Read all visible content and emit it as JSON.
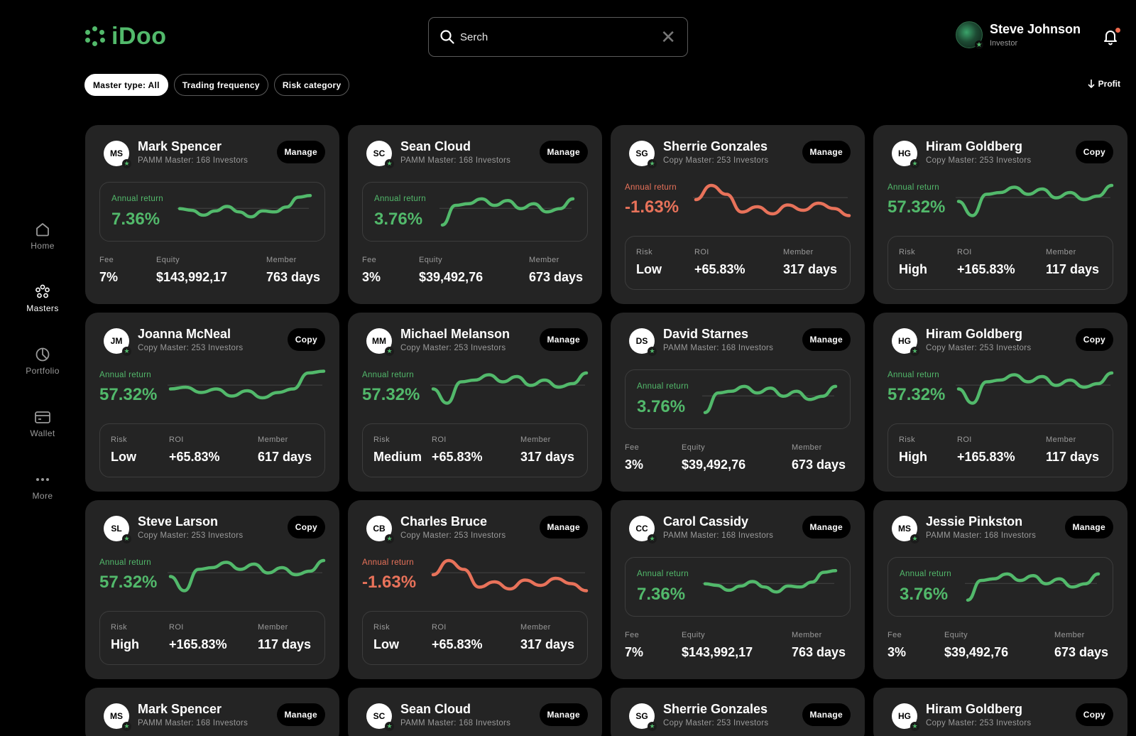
{
  "app": {
    "name": "iDoo",
    "brand_color": "#52b96b",
    "negative_color": "#e8725a"
  },
  "search": {
    "placeholder": "Serch",
    "search_icon": "search-icon",
    "clear_icon": "close-icon"
  },
  "user": {
    "name": "Steve Johnson",
    "role": "Investor",
    "notification_icon": "bell-icon"
  },
  "filters": [
    {
      "label": "Master type: All",
      "active": true
    },
    {
      "label": "Trading frequency",
      "active": false
    },
    {
      "label": "Risk category",
      "active": false
    }
  ],
  "sort": {
    "label": "Profit",
    "icon": "arrow-down-icon"
  },
  "nav": [
    {
      "label": "Home",
      "icon": "home-icon",
      "active": false
    },
    {
      "label": "Masters",
      "icon": "masters-icon",
      "active": true
    },
    {
      "label": "Portfolio",
      "icon": "pie-chart-icon",
      "active": false
    },
    {
      "label": "Wallet",
      "icon": "wallet-icon",
      "active": false
    },
    {
      "label": "More",
      "icon": "more-icon",
      "active": false
    }
  ],
  "labels": {
    "annual_return": "Annual return",
    "fee": "Fee",
    "equity": "Equity",
    "member": "Member",
    "risk": "Risk",
    "roi": "ROI"
  },
  "cards": [
    {
      "initials": "MS",
      "name": "Mark Spencer",
      "subtitle": "PAMM Master: 168 Investors",
      "action": "Manage",
      "layout": "pamm",
      "annual_return": "7.36%",
      "trend": "up",
      "fee": "7%",
      "equity": "$143,992,17",
      "member": "763 days",
      "sparkline": [
        0.45,
        0.5,
        0.65,
        0.52,
        0.38,
        0.55,
        0.7,
        0.52,
        0.55,
        0.4,
        0.1,
        0.05
      ]
    },
    {
      "initials": "SC",
      "name": "Sean Cloud",
      "subtitle": "PAMM Master: 168 Investors",
      "action": "Manage",
      "layout": "pamm",
      "annual_return": "3.76%",
      "trend": "up",
      "fee": "3%",
      "equity": "$39,492,76",
      "member": "673 days",
      "sparkline": [
        0.95,
        0.35,
        0.3,
        0.15,
        0.35,
        0.2,
        0.45,
        0.3,
        0.55,
        0.45,
        0.15
      ]
    },
    {
      "initials": "SG",
      "name": "Sherrie Gonzales",
      "subtitle": "Copy Master: 253 Investors",
      "action": "Manage",
      "layout": "copy",
      "annual_return": "-1.63%",
      "trend": "down",
      "risk": "Low",
      "roi": "+65.83%",
      "member": "317 days",
      "sparkline": [
        0.5,
        0.1,
        0.35,
        0.85,
        0.7,
        0.9,
        0.65,
        0.8,
        0.6,
        0.75,
        0.95
      ]
    },
    {
      "initials": "HG",
      "name": "Hiram Goldberg",
      "subtitle": "Copy Master: 253 Investors",
      "action": "Copy",
      "layout": "copy",
      "annual_return": "57.32%",
      "trend": "up",
      "risk": "High",
      "roi": "+165.83%",
      "member": "117 days",
      "sparkline": [
        0.55,
        0.95,
        0.35,
        0.3,
        0.15,
        0.35,
        0.2,
        0.45,
        0.3,
        0.5,
        0.4,
        0.1
      ]
    },
    {
      "initials": "JM",
      "name": "Joanna McNeal",
      "subtitle": "Copy Master: 253 Investors",
      "action": "Copy",
      "layout": "copy",
      "annual_return": "57.32%",
      "trend": "up",
      "risk": "Low",
      "roi": "+65.83%",
      "member": "617 days",
      "sparkline": [
        0.55,
        0.5,
        0.65,
        0.55,
        0.75,
        0.6,
        0.8,
        0.65,
        0.55,
        0.1,
        0.05
      ]
    },
    {
      "initials": "MM",
      "name": "Michael Melanson",
      "subtitle": "Copy Master: 253 Investors",
      "action": "Manage",
      "layout": "copy",
      "annual_return": "57.32%",
      "trend": "up",
      "risk": "Medium",
      "roi": "+65.83%",
      "member": "317 days",
      "sparkline": [
        0.55,
        0.95,
        0.35,
        0.3,
        0.15,
        0.35,
        0.2,
        0.45,
        0.3,
        0.5,
        0.4,
        0.1
      ]
    },
    {
      "initials": "DS",
      "name": "David Starnes",
      "subtitle": "PAMM Master: 168 Investors",
      "action": "Manage",
      "layout": "pamm",
      "annual_return": "3.76%",
      "trend": "up",
      "fee": "3%",
      "equity": "$39,492,76",
      "member": "673 days",
      "sparkline": [
        0.95,
        0.35,
        0.3,
        0.15,
        0.35,
        0.2,
        0.45,
        0.3,
        0.55,
        0.45,
        0.15
      ]
    },
    {
      "initials": "HG",
      "name": "Hiram Goldberg",
      "subtitle": "Copy Master: 253 Investors",
      "action": "Copy",
      "layout": "copy",
      "annual_return": "57.32%",
      "trend": "up",
      "risk": "High",
      "roi": "+165.83%",
      "member": "117 days",
      "sparkline": [
        0.55,
        0.95,
        0.35,
        0.3,
        0.15,
        0.35,
        0.2,
        0.45,
        0.3,
        0.5,
        0.4,
        0.1
      ]
    },
    {
      "initials": "SL",
      "name": "Steve Larson",
      "subtitle": "Copy Master: 253 Investors",
      "action": "Copy",
      "layout": "copy",
      "annual_return": "57.32%",
      "trend": "up",
      "risk": "High",
      "roi": "+165.83%",
      "member": "117 days",
      "sparkline": [
        0.55,
        0.95,
        0.35,
        0.3,
        0.15,
        0.35,
        0.2,
        0.45,
        0.3,
        0.5,
        0.4,
        0.1
      ]
    },
    {
      "initials": "CB",
      "name": "Charles Bruce",
      "subtitle": "Copy Master: 253 Investors",
      "action": "Manage",
      "layout": "copy",
      "annual_return": "-1.63%",
      "trend": "down",
      "risk": "Low",
      "roi": "+65.83%",
      "member": "317 days",
      "sparkline": [
        0.5,
        0.1,
        0.35,
        0.85,
        0.7,
        0.9,
        0.65,
        0.8,
        0.6,
        0.75,
        0.95
      ]
    },
    {
      "initials": "CC",
      "name": "Carol Cassidy",
      "subtitle": "PAMM Master: 168 Investors",
      "action": "Manage",
      "layout": "pamm",
      "annual_return": "7.36%",
      "trend": "up",
      "fee": "7%",
      "equity": "$143,992,17",
      "member": "763 days",
      "sparkline": [
        0.45,
        0.5,
        0.65,
        0.52,
        0.38,
        0.55,
        0.7,
        0.52,
        0.55,
        0.4,
        0.1,
        0.05
      ]
    },
    {
      "initials": "MS",
      "name": "Jessie Pinkston",
      "subtitle": "PAMM Master: 168 Investors",
      "action": "Manage",
      "layout": "pamm",
      "annual_return": "3.76%",
      "trend": "up",
      "fee": "3%",
      "equity": "$39,492,76",
      "member": "673 days",
      "sparkline": [
        0.95,
        0.35,
        0.3,
        0.15,
        0.35,
        0.2,
        0.45,
        0.3,
        0.55,
        0.45,
        0.15
      ]
    },
    {
      "initials": "MS",
      "name": "Mark Spencer",
      "subtitle": "PAMM Master: 168 Investors",
      "action": "Manage",
      "layout": "pamm",
      "partial": true
    },
    {
      "initials": "SC",
      "name": "Sean Cloud",
      "subtitle": "PAMM Master: 168 Investors",
      "action": "Manage",
      "layout": "pamm",
      "partial": true
    },
    {
      "initials": "SG",
      "name": "Sherrie Gonzales",
      "subtitle": "Copy Master: 253 Investors",
      "action": "Manage",
      "layout": "copy",
      "partial": true
    },
    {
      "initials": "HG",
      "name": "Hiram Goldberg",
      "subtitle": "Copy Master: 253 Investors",
      "action": "Copy",
      "layout": "copy",
      "partial": true
    }
  ]
}
